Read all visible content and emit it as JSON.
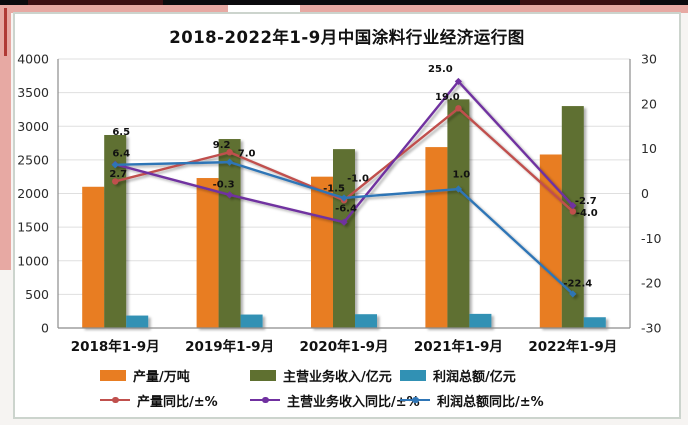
{
  "chart_data": {
    "type": "bar",
    "subtype": "combo-bar-line-dual-axis",
    "title": "2018-2022年1-9月中国涂料行业经济运行图",
    "categories": [
      "2018年1-9月",
      "2019年1-9月",
      "2020年1-9月",
      "2021年1-9月",
      "2022年1-9月"
    ],
    "bar_series": [
      {
        "name": "产量/万吨",
        "axis": "left",
        "color": "#E87D22",
        "values": [
          2100,
          2230,
          2250,
          2690,
          2580
        ]
      },
      {
        "name": "主营业务收入/亿元",
        "axis": "left",
        "color": "#5F7030",
        "values": [
          2870,
          2810,
          2660,
          3400,
          3300
        ]
      },
      {
        "name": "利润总额/亿元",
        "axis": "left",
        "color": "#3191B4",
        "values": [
          185,
          200,
          205,
          210,
          160
        ]
      }
    ],
    "line_series": [
      {
        "name": "产量同比/±%",
        "axis": "right",
        "color": "#C0504D",
        "marker": "circle",
        "values": [
          2.7,
          9.2,
          -1.5,
          19.0,
          -4.0
        ]
      },
      {
        "name": "主营业务收入同比/±%",
        "axis": "right",
        "color": "#7030A0",
        "marker": "diamond",
        "values": [
          6.5,
          -0.3,
          -6.4,
          25.0,
          -2.7
        ]
      },
      {
        "name": "利润总额同比/±%",
        "axis": "right",
        "color": "#2E75B6",
        "marker": "diamond",
        "values": [
          6.4,
          7.0,
          -1.0,
          1.0,
          -22.4
        ]
      }
    ],
    "left_axis": {
      "min": 0,
      "max": 4000,
      "step": 500,
      "ticks": [
        "0",
        "500",
        "1000",
        "1500",
        "2000",
        "2500",
        "3000",
        "3500",
        "4000"
      ]
    },
    "right_axis": {
      "min": -30,
      "max": 30,
      "step": 10,
      "ticks": [
        "-30",
        "-20",
        "-10",
        "0",
        "10",
        "20",
        "30"
      ]
    },
    "gridlines": true,
    "legend_position": "bottom"
  }
}
